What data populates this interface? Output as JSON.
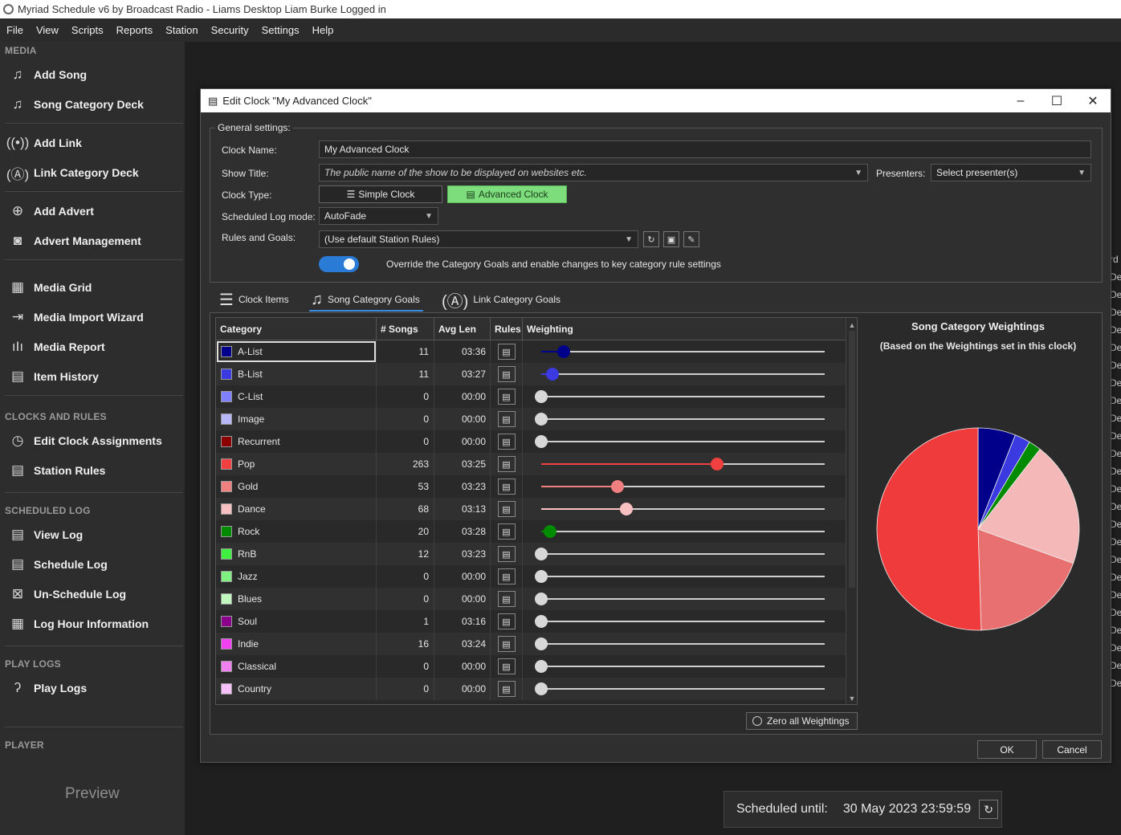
{
  "window_title": "Myriad Schedule v6 by Broadcast Radio - Liams Desktop Liam Burke Logged in",
  "menu": [
    "File",
    "View",
    "Scripts",
    "Reports",
    "Station",
    "Security",
    "Settings",
    "Help"
  ],
  "sidebar": {
    "media_header": "MEDIA",
    "media_items": [
      {
        "label": "Add Song",
        "icon": "add-song-icon"
      },
      {
        "label": "Song Category Deck",
        "icon": "music-note-icon"
      },
      {
        "label": "Add Link",
        "icon": "add-link-icon"
      },
      {
        "label": "Link Category Deck",
        "icon": "antenna-icon"
      },
      {
        "label": "Add Advert",
        "icon": "add-advert-icon"
      },
      {
        "label": "Advert Management",
        "icon": "advert-icon"
      },
      {
        "label": "Media Grid",
        "icon": "grid-icon"
      },
      {
        "label": "Media Import Wizard",
        "icon": "import-icon"
      },
      {
        "label": "Media Report",
        "icon": "waveform-icon"
      },
      {
        "label": "Item History",
        "icon": "history-icon"
      }
    ],
    "clocks_header": "CLOCKS AND RULES",
    "clocks_items": [
      {
        "label": "Edit Clock Assignments",
        "icon": "clock-icon"
      },
      {
        "label": "Station Rules",
        "icon": "rules-icon"
      }
    ],
    "log_header": "SCHEDULED LOG",
    "log_items": [
      {
        "label": "View Log",
        "icon": "view-log-icon"
      },
      {
        "label": "Schedule Log",
        "icon": "schedule-log-icon"
      },
      {
        "label": "Un-Schedule Log",
        "icon": "unschedule-log-icon"
      },
      {
        "label": "Log Hour Information",
        "icon": "log-hour-icon"
      }
    ],
    "playlogs_header": "PLAY LOGS",
    "playlogs_items": [
      {
        "label": "Play Logs",
        "icon": "ear-icon"
      }
    ],
    "player_header": "PLAYER",
    "preview_label": "Preview"
  },
  "right_list_item": "De",
  "right_list_header": "rd",
  "scheduled": {
    "label": "Scheduled until:",
    "value": "30 May 2023 23:59:59"
  },
  "dialog": {
    "title": "Edit Clock \"My Advanced Clock\"",
    "general_legend": "General settings:",
    "clock_name_label": "Clock Name:",
    "clock_name_value": "My Advanced Clock",
    "show_title_label": "Show Title:",
    "show_title_placeholder": "The public name of the show to be displayed on websites etc.",
    "presenters_label": "Presenters:",
    "presenters_value": "Select presenter(s)",
    "clock_type_label": "Clock Type:",
    "simple_clock_label": "Simple Clock",
    "advanced_clock_label": "Advanced Clock",
    "log_mode_label": "Scheduled Log mode:",
    "log_mode_value": "AutoFade",
    "rules_label": "Rules and Goals:",
    "rules_value": "(Use default Station Rules)",
    "override_label": "Override the Category Goals and enable changes to key category rule settings",
    "override_on": true,
    "tabs": [
      {
        "label": "Clock Items",
        "icon": "list-icon"
      },
      {
        "label": "Song Category Goals",
        "icon": "music-note-icon"
      },
      {
        "label": "Link Category Goals",
        "icon": "antenna-icon"
      }
    ],
    "active_tab": 1,
    "columns": [
      "Category",
      "# Songs",
      "Avg Len",
      "Rules",
      "Weighting"
    ],
    "categories": [
      {
        "name": "A-List",
        "songs": "11",
        "avg": "03:36",
        "color": "#00008b",
        "weight": 0.08
      },
      {
        "name": "B-List",
        "songs": "11",
        "avg": "03:27",
        "color": "#3a3ae0",
        "weight": 0.04
      },
      {
        "name": "C-List",
        "songs": "0",
        "avg": "00:00",
        "color": "#8080ff",
        "weight": 0
      },
      {
        "name": "Image",
        "songs": "0",
        "avg": "00:00",
        "color": "#b8b8f8",
        "weight": 0
      },
      {
        "name": "Recurrent",
        "songs": "0",
        "avg": "00:00",
        "color": "#8b0000",
        "weight": 0
      },
      {
        "name": "Pop",
        "songs": "263",
        "avg": "03:25",
        "color": "#f04040",
        "weight": 0.62
      },
      {
        "name": "Gold",
        "songs": "53",
        "avg": "03:23",
        "color": "#f08080",
        "weight": 0.27
      },
      {
        "name": "Dance",
        "songs": "68",
        "avg": "03:13",
        "color": "#f8c0c0",
        "weight": 0.3
      },
      {
        "name": "Rock",
        "songs": "20",
        "avg": "03:28",
        "color": "#008b00",
        "weight": 0.03
      },
      {
        "name": "RnB",
        "songs": "12",
        "avg": "03:23",
        "color": "#40f040",
        "weight": 0
      },
      {
        "name": "Jazz",
        "songs": "0",
        "avg": "00:00",
        "color": "#80f080",
        "weight": 0
      },
      {
        "name": "Blues",
        "songs": "0",
        "avg": "00:00",
        "color": "#c0f8c0",
        "weight": 0
      },
      {
        "name": "Soul",
        "songs": "1",
        "avg": "03:16",
        "color": "#8b008b",
        "weight": 0
      },
      {
        "name": "Indie",
        "songs": "16",
        "avg": "03:24",
        "color": "#f040f0",
        "weight": 0
      },
      {
        "name": "Classical",
        "songs": "0",
        "avg": "00:00",
        "color": "#f080f0",
        "weight": 0
      },
      {
        "name": "Country",
        "songs": "0",
        "avg": "00:00",
        "color": "#f8c0f8",
        "weight": 0
      }
    ],
    "chart_title": "Song Category Weightings",
    "chart_subtitle": "(Based on the Weightings set in this clock)",
    "zero_label": "Zero all Weightings",
    "ok_label": "OK",
    "cancel_label": "Cancel"
  },
  "chart_data": {
    "type": "pie",
    "title": "Song Category Weightings",
    "subtitle": "(Based on the Weightings set in this clock)",
    "categories": [
      "A-List",
      "B-List",
      "Rock",
      "Dance",
      "Gold",
      "Pop"
    ],
    "values": [
      6,
      2.5,
      2,
      20,
      19,
      50.5
    ],
    "colors": [
      "#00008b",
      "#3a3ae0",
      "#008b00",
      "#f4b8b8",
      "#e87070",
      "#ef3b3b"
    ]
  }
}
